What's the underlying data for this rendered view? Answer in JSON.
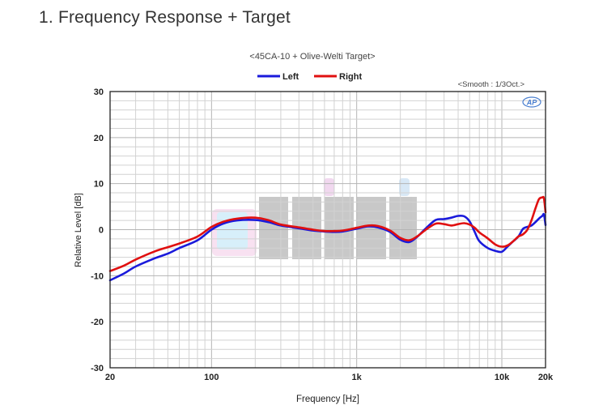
{
  "heading": "1. Frequency Response + Target",
  "colors": {
    "left": "#1a1adb",
    "right": "#e01010",
    "grid": "#d2d2d2",
    "frame": "#222222",
    "logo": "#4a7fd0"
  },
  "chart_data": {
    "type": "line",
    "title": "<45CA-10 + Olive-Welti Target>",
    "annotation": "<Smooth : 1/3Oct.>",
    "logo_text": "AP",
    "xlabel": "Frequency [Hz]",
    "ylabel": "Relative Level [dB]",
    "x_scale": "log",
    "xlim": [
      20,
      20000
    ],
    "ylim": [
      -30,
      30
    ],
    "grid": true,
    "legend_position": "top-center",
    "x_ticks": [
      {
        "value": 20,
        "label": "20"
      },
      {
        "value": 100,
        "label": "100"
      },
      {
        "value": 1000,
        "label": "1k"
      },
      {
        "value": 10000,
        "label": "10k"
      },
      {
        "value": 20000,
        "label": "20k"
      }
    ],
    "y_ticks": [
      {
        "value": 30,
        "label": "30"
      },
      {
        "value": 20,
        "label": "20"
      },
      {
        "value": 10,
        "label": "10"
      },
      {
        "value": 0,
        "label": "0"
      },
      {
        "value": -10,
        "label": "-10"
      },
      {
        "value": -20,
        "label": "-20"
      },
      {
        "value": -30,
        "label": "-30"
      }
    ],
    "series": [
      {
        "name": "Left",
        "color": "#1a1adb",
        "points": [
          [
            20,
            -11
          ],
          [
            25,
            -9.5
          ],
          [
            30,
            -8
          ],
          [
            40,
            -6.3
          ],
          [
            50,
            -5.2
          ],
          [
            60,
            -4
          ],
          [
            80,
            -2.3
          ],
          [
            100,
            0
          ],
          [
            120,
            1.3
          ],
          [
            150,
            2.0
          ],
          [
            200,
            2.1
          ],
          [
            250,
            1.6
          ],
          [
            300,
            0.9
          ],
          [
            400,
            0.3
          ],
          [
            500,
            -0.2
          ],
          [
            600,
            -0.4
          ],
          [
            700,
            -0.5
          ],
          [
            800,
            -0.4
          ],
          [
            1000,
            0.2
          ],
          [
            1200,
            0.7
          ],
          [
            1400,
            0.5
          ],
          [
            1700,
            -0.5
          ],
          [
            2000,
            -2.2
          ],
          [
            2300,
            -2.7
          ],
          [
            2600,
            -1.6
          ],
          [
            3000,
            0.3
          ],
          [
            3500,
            2.1
          ],
          [
            4000,
            2.3
          ],
          [
            4500,
            2.6
          ],
          [
            5000,
            3.0
          ],
          [
            5500,
            2.9
          ],
          [
            6000,
            1.8
          ],
          [
            6500,
            -0.5
          ],
          [
            7000,
            -2.5
          ],
          [
            8000,
            -4.0
          ],
          [
            9000,
            -4.6
          ],
          [
            10000,
            -4.8
          ],
          [
            11000,
            -3.6
          ],
          [
            12000,
            -2.5
          ],
          [
            13000,
            -1.5
          ],
          [
            14000,
            0.2
          ],
          [
            15000,
            0.6
          ],
          [
            16000,
            0.9
          ],
          [
            17000,
            1.6
          ],
          [
            18000,
            2.4
          ],
          [
            19000,
            3.0
          ],
          [
            19500,
            3.3
          ],
          [
            20000,
            1.0
          ]
        ]
      },
      {
        "name": "Right",
        "color": "#e01010",
        "points": [
          [
            20,
            -9
          ],
          [
            25,
            -7.8
          ],
          [
            30,
            -6.5
          ],
          [
            40,
            -4.8
          ],
          [
            50,
            -3.8
          ],
          [
            60,
            -3
          ],
          [
            80,
            -1.5
          ],
          [
            100,
            0.6
          ],
          [
            120,
            1.7
          ],
          [
            150,
            2.4
          ],
          [
            200,
            2.6
          ],
          [
            250,
            2.0
          ],
          [
            300,
            1.1
          ],
          [
            400,
            0.5
          ],
          [
            500,
            0
          ],
          [
            600,
            -0.3
          ],
          [
            700,
            -0.3
          ],
          [
            800,
            -0.2
          ],
          [
            1000,
            0.4
          ],
          [
            1200,
            0.9
          ],
          [
            1400,
            0.8
          ],
          [
            1700,
            -0.2
          ],
          [
            2000,
            -1.8
          ],
          [
            2300,
            -2.3
          ],
          [
            2600,
            -1.5
          ],
          [
            3000,
            0
          ],
          [
            3500,
            1.3
          ],
          [
            4000,
            1.2
          ],
          [
            4500,
            0.9
          ],
          [
            5000,
            1.2
          ],
          [
            5500,
            1.4
          ],
          [
            6000,
            1.1
          ],
          [
            6500,
            0.4
          ],
          [
            7000,
            -0.6
          ],
          [
            8000,
            -1.9
          ],
          [
            9000,
            -3.2
          ],
          [
            10000,
            -3.7
          ],
          [
            11000,
            -3.4
          ],
          [
            12000,
            -2.5
          ],
          [
            13000,
            -1.5
          ],
          [
            14000,
            -1.0
          ],
          [
            15000,
            0
          ],
          [
            16000,
            2.0
          ],
          [
            17000,
            4.5
          ],
          [
            18000,
            6.6
          ],
          [
            19000,
            7.0
          ],
          [
            19500,
            6.8
          ],
          [
            20000,
            3.8
          ]
        ]
      }
    ]
  }
}
